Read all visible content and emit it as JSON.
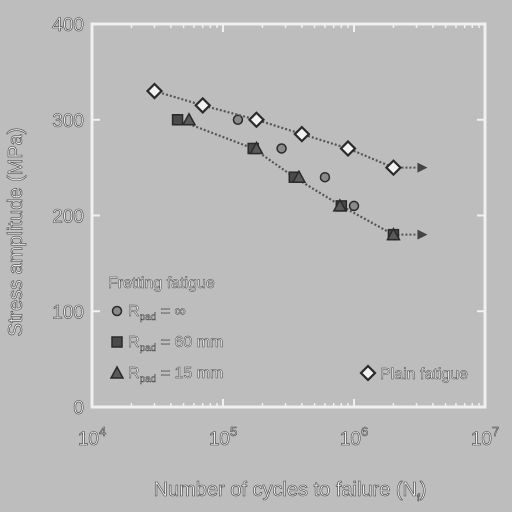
{
  "chart_data": {
    "type": "scatter",
    "title": "",
    "xlabel": "Number of cycles to failure (N",
    "xlabel_sub": "f",
    "xlabel_end": ")",
    "ylabel": "Stress amplitude (MPa)",
    "xscale": "log",
    "xlim": [
      10000,
      10000000
    ],
    "ylim": [
      0,
      400
    ],
    "x_ticks": [
      {
        "value": 10000,
        "base": "10",
        "exp": "4"
      },
      {
        "value": 100000,
        "base": "10",
        "exp": "5"
      },
      {
        "value": 1000000,
        "base": "10",
        "exp": "6"
      },
      {
        "value": 10000000,
        "base": "10",
        "exp": "7"
      }
    ],
    "y_ticks": [
      0,
      100,
      200,
      300,
      400
    ],
    "legend_group_title": "Fretting fatigue",
    "series": [
      {
        "name_main": "R",
        "name_sub": "pad",
        "name_rest": " = ∞",
        "marker": "circle",
        "color": "#8a8a8a",
        "points": [
          [
            30000,
            330
          ],
          [
            130000,
            300
          ],
          [
            280000,
            270
          ],
          [
            600000,
            240
          ],
          [
            1000000,
            210
          ]
        ]
      },
      {
        "name_main": "R",
        "name_sub": "pad",
        "name_rest": " = 60 mm",
        "marker": "square",
        "color": "#4a4a4a",
        "points": [
          [
            45000,
            300
          ],
          [
            170000,
            270
          ],
          [
            350000,
            240
          ],
          [
            800000,
            210
          ],
          [
            2000000,
            180
          ]
        ],
        "runout_from": [
          2000000,
          180
        ]
      },
      {
        "name_main": "R",
        "name_sub": "pad",
        "name_rest": " = 15 mm",
        "marker": "triangle",
        "color": "#5a5a5a",
        "points": [
          [
            55000,
            300
          ],
          [
            180000,
            270
          ],
          [
            380000,
            240
          ],
          [
            780000,
            210
          ],
          [
            2000000,
            180
          ]
        ]
      },
      {
        "name": "Plain fatigue",
        "marker": "diamond",
        "color": "#f2f2f2",
        "points": [
          [
            30000,
            330
          ],
          [
            70000,
            315
          ],
          [
            180000,
            300
          ],
          [
            400000,
            285
          ],
          [
            900000,
            270
          ],
          [
            2000000,
            250
          ]
        ],
        "runout_from": [
          2000000,
          250
        ]
      }
    ],
    "grid": false,
    "legend_position": "bottom-left and bottom-right"
  }
}
